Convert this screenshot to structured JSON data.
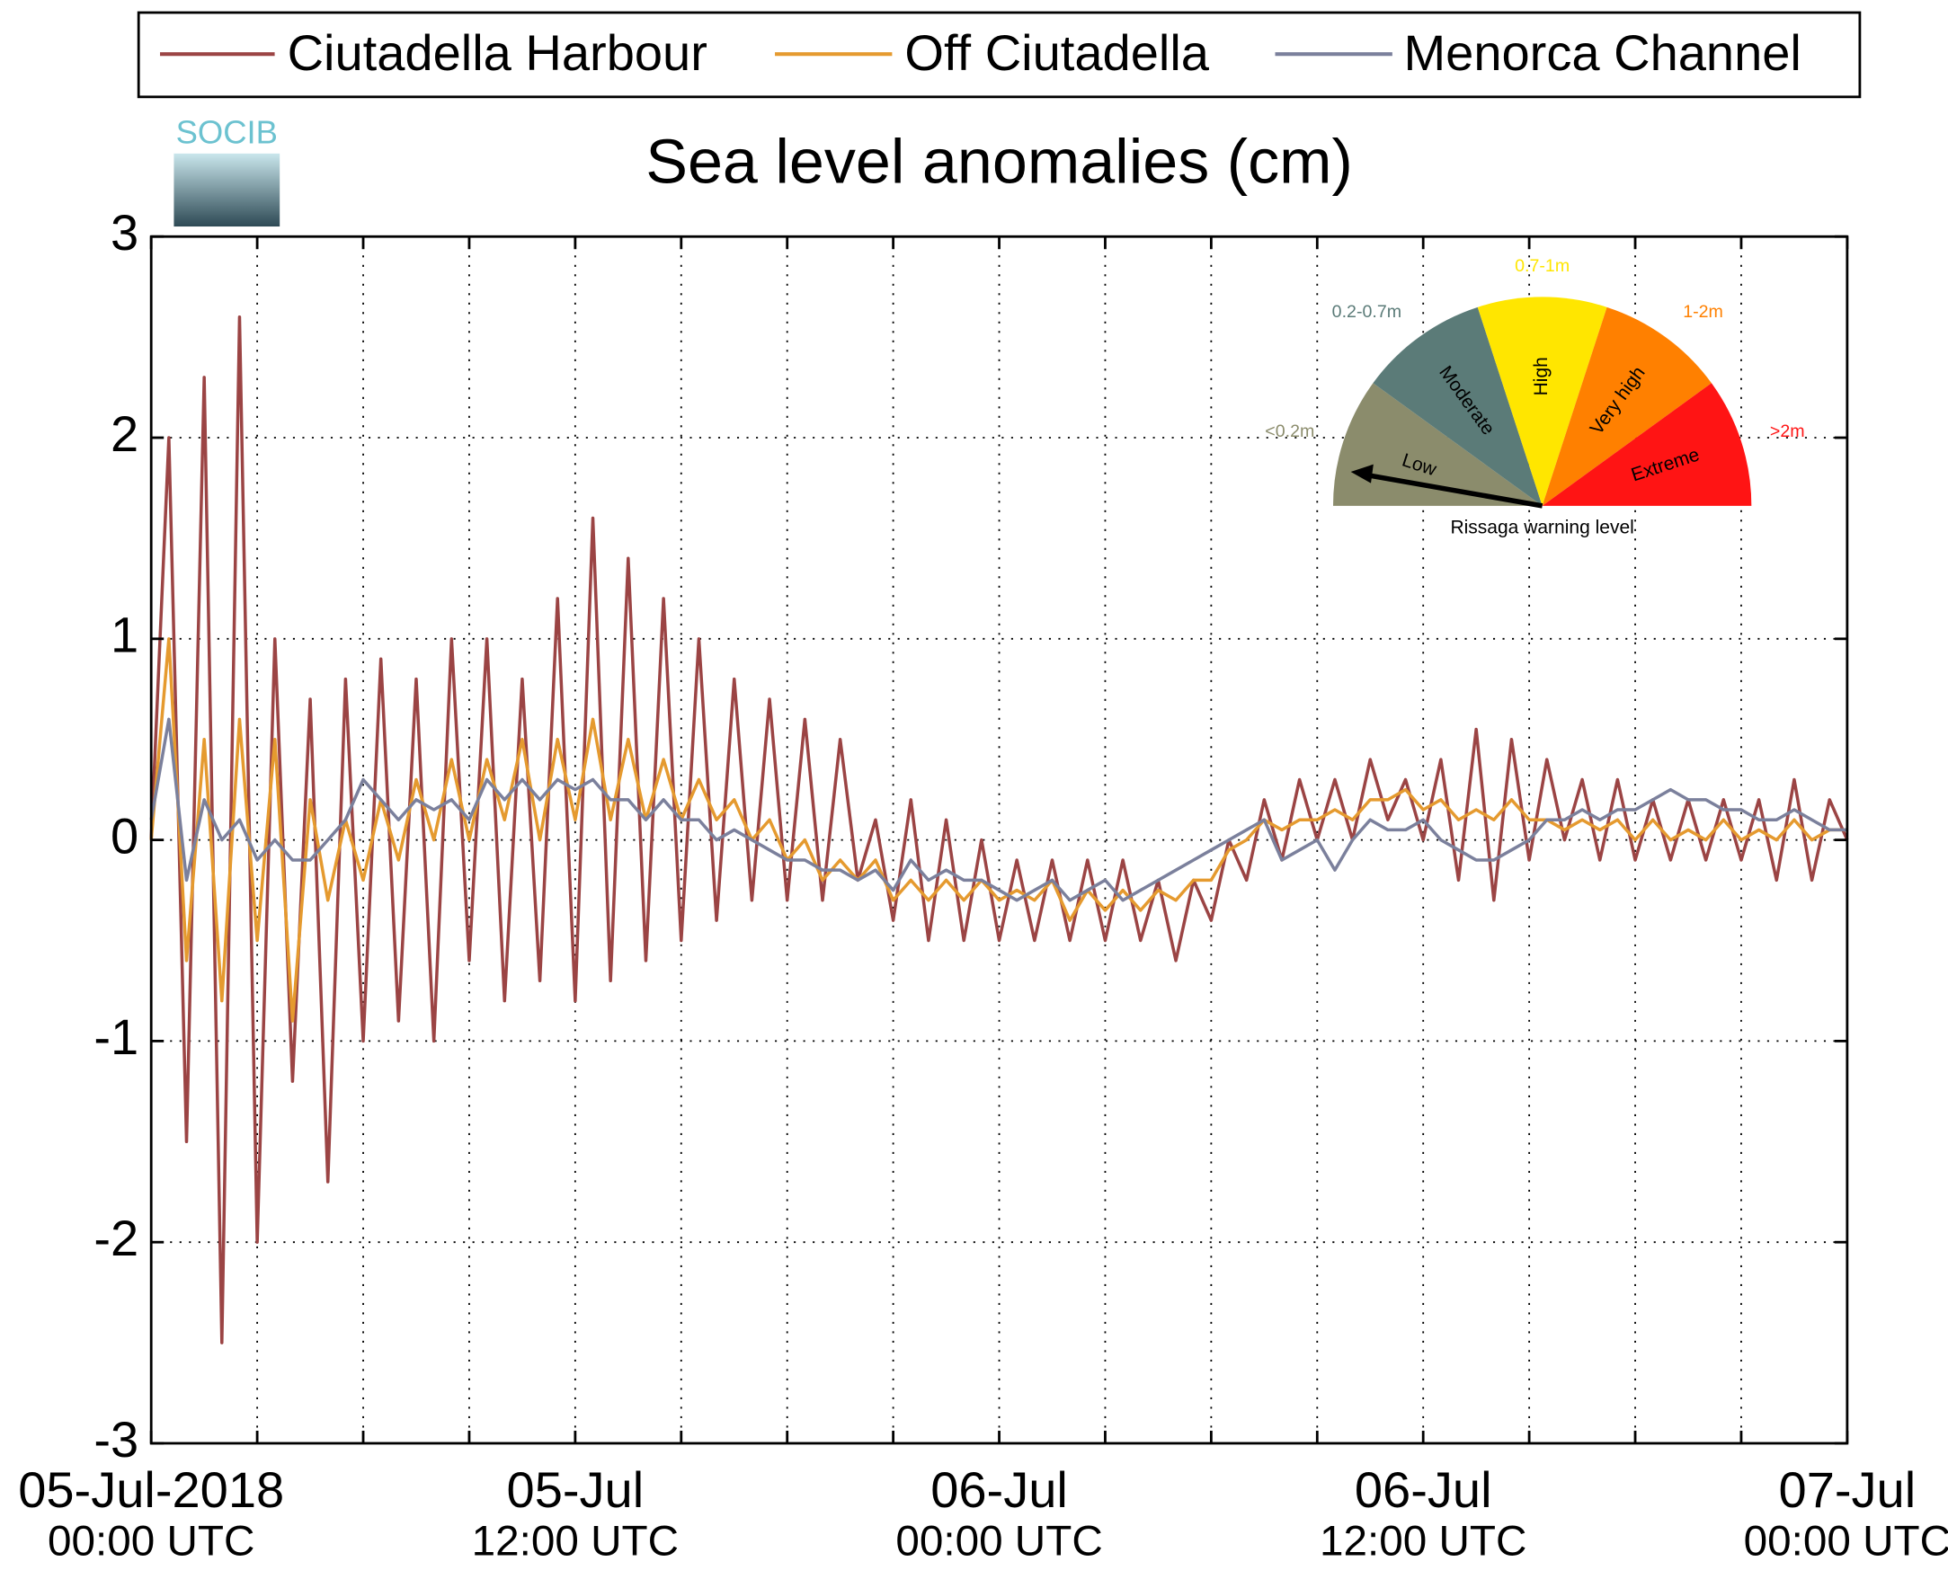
{
  "chart_data": {
    "type": "line",
    "title": "Sea level anomalies (cm)",
    "logo": "SOCIB",
    "x": [
      "2018-07-05 00:00",
      "2018-07-05 00:30",
      "2018-07-05 01:00",
      "2018-07-05 01:30",
      "2018-07-05 02:00",
      "2018-07-05 02:30",
      "2018-07-05 03:00",
      "2018-07-05 03:30",
      "2018-07-05 04:00",
      "2018-07-05 04:30",
      "2018-07-05 05:00",
      "2018-07-05 05:30",
      "2018-07-05 06:00",
      "2018-07-05 06:30",
      "2018-07-05 07:00",
      "2018-07-05 07:30",
      "2018-07-05 08:00",
      "2018-07-05 08:30",
      "2018-07-05 09:00",
      "2018-07-05 09:30",
      "2018-07-05 10:00",
      "2018-07-05 10:30",
      "2018-07-05 11:00",
      "2018-07-05 11:30",
      "2018-07-05 12:00",
      "2018-07-05 12:30",
      "2018-07-05 13:00",
      "2018-07-05 13:30",
      "2018-07-05 14:00",
      "2018-07-05 14:30",
      "2018-07-05 15:00",
      "2018-07-05 15:30",
      "2018-07-05 16:00",
      "2018-07-05 16:30",
      "2018-07-05 17:00",
      "2018-07-05 17:30",
      "2018-07-05 18:00",
      "2018-07-05 18:30",
      "2018-07-05 19:00",
      "2018-07-05 19:30",
      "2018-07-05 20:00",
      "2018-07-05 20:30",
      "2018-07-05 21:00",
      "2018-07-05 21:30",
      "2018-07-05 22:00",
      "2018-07-05 22:30",
      "2018-07-05 23:00",
      "2018-07-05 23:30",
      "2018-07-06 00:00",
      "2018-07-06 00:30",
      "2018-07-06 01:00",
      "2018-07-06 01:30",
      "2018-07-06 02:00",
      "2018-07-06 02:30",
      "2018-07-06 03:00",
      "2018-07-06 03:30",
      "2018-07-06 04:00",
      "2018-07-06 04:30",
      "2018-07-06 05:00",
      "2018-07-06 05:30",
      "2018-07-06 06:00",
      "2018-07-06 06:30",
      "2018-07-06 07:00",
      "2018-07-06 07:30",
      "2018-07-06 08:00",
      "2018-07-06 08:30",
      "2018-07-06 09:00",
      "2018-07-06 09:30",
      "2018-07-06 10:00",
      "2018-07-06 10:30",
      "2018-07-06 11:00",
      "2018-07-06 11:30",
      "2018-07-06 12:00",
      "2018-07-06 12:30",
      "2018-07-06 13:00",
      "2018-07-06 13:30",
      "2018-07-06 14:00",
      "2018-07-06 14:30",
      "2018-07-06 15:00",
      "2018-07-06 15:30",
      "2018-07-06 16:00",
      "2018-07-06 16:30",
      "2018-07-06 17:00",
      "2018-07-06 17:30",
      "2018-07-06 18:00",
      "2018-07-06 18:30",
      "2018-07-06 19:00",
      "2018-07-06 19:30",
      "2018-07-06 20:00",
      "2018-07-06 20:30",
      "2018-07-06 21:00",
      "2018-07-06 21:30",
      "2018-07-06 22:00",
      "2018-07-06 22:30",
      "2018-07-06 23:00",
      "2018-07-06 23:30",
      "2018-07-07 00:00"
    ],
    "series": [
      {
        "name": "Ciutadella Harbour",
        "color": "#9b4444",
        "values": [
          0,
          2.0,
          -1.5,
          2.3,
          -2.5,
          2.6,
          -2.0,
          1.0,
          -1.2,
          0.7,
          -1.7,
          0.8,
          -1.0,
          0.9,
          -0.9,
          0.8,
          -1.0,
          1.0,
          -0.6,
          1.0,
          -0.8,
          0.8,
          -0.7,
          1.2,
          -0.8,
          1.6,
          -0.7,
          1.4,
          -0.6,
          1.2,
          -0.5,
          1.0,
          -0.4,
          0.8,
          -0.3,
          0.7,
          -0.3,
          0.6,
          -0.3,
          0.5,
          -0.2,
          0.1,
          -0.4,
          0.2,
          -0.5,
          0.1,
          -0.5,
          0.0,
          -0.5,
          -0.1,
          -0.5,
          -0.1,
          -0.5,
          -0.1,
          -0.5,
          -0.1,
          -0.5,
          -0.2,
          -0.6,
          -0.2,
          -0.4,
          0.0,
          -0.2,
          0.2,
          -0.1,
          0.3,
          0.0,
          0.3,
          0.0,
          0.4,
          0.1,
          0.3,
          0.0,
          0.4,
          -0.2,
          0.55,
          -0.3,
          0.5,
          -0.1,
          0.4,
          0.0,
          0.3,
          -0.1,
          0.3,
          -0.1,
          0.2,
          -0.1,
          0.2,
          -0.1,
          0.2,
          -0.1,
          0.2,
          -0.2,
          0.3,
          -0.2,
          0.2,
          0.0
        ]
      },
      {
        "name": "Off Ciutadella",
        "color": "#e59a2f",
        "values": [
          0,
          1.0,
          -0.6,
          0.5,
          -0.8,
          0.6,
          -0.5,
          0.5,
          -0.9,
          0.2,
          -0.3,
          0.1,
          -0.2,
          0.2,
          -0.1,
          0.3,
          0.0,
          0.4,
          0.0,
          0.4,
          0.1,
          0.5,
          0.0,
          0.5,
          0.1,
          0.6,
          0.1,
          0.5,
          0.1,
          0.4,
          0.1,
          0.3,
          0.1,
          0.2,
          0.0,
          0.1,
          -0.1,
          0.0,
          -0.2,
          -0.1,
          -0.2,
          -0.1,
          -0.3,
          -0.2,
          -0.3,
          -0.2,
          -0.3,
          -0.2,
          -0.3,
          -0.25,
          -0.3,
          -0.2,
          -0.4,
          -0.25,
          -0.35,
          -0.25,
          -0.35,
          -0.25,
          -0.3,
          -0.2,
          -0.2,
          -0.05,
          0.0,
          0.1,
          0.05,
          0.1,
          0.1,
          0.15,
          0.1,
          0.2,
          0.2,
          0.25,
          0.15,
          0.2,
          0.1,
          0.15,
          0.1,
          0.2,
          0.1,
          0.1,
          0.05,
          0.1,
          0.05,
          0.1,
          0.0,
          0.1,
          0.0,
          0.05,
          0.0,
          0.1,
          0.0,
          0.05,
          0.0,
          0.1,
          0.0,
          0.05,
          0.05
        ]
      },
      {
        "name": "Menorca Channel",
        "color": "#7b809c",
        "values": [
          0.1,
          0.6,
          -0.2,
          0.2,
          0.0,
          0.1,
          -0.1,
          0.0,
          -0.1,
          -0.1,
          0.0,
          0.1,
          0.3,
          0.2,
          0.1,
          0.2,
          0.15,
          0.2,
          0.1,
          0.3,
          0.2,
          0.3,
          0.2,
          0.3,
          0.25,
          0.3,
          0.2,
          0.2,
          0.1,
          0.2,
          0.1,
          0.1,
          0.0,
          0.05,
          0.0,
          -0.05,
          -0.1,
          -0.1,
          -0.15,
          -0.15,
          -0.2,
          -0.15,
          -0.25,
          -0.1,
          -0.2,
          -0.15,
          -0.2,
          -0.2,
          -0.25,
          -0.3,
          -0.25,
          -0.2,
          -0.3,
          -0.25,
          -0.2,
          -0.3,
          -0.25,
          -0.2,
          -0.15,
          -0.1,
          -0.05,
          0.0,
          0.05,
          0.1,
          -0.1,
          -0.05,
          0.0,
          -0.15,
          0.0,
          0.1,
          0.05,
          0.05,
          0.1,
          0.0,
          -0.05,
          -0.1,
          -0.1,
          -0.05,
          0.0,
          0.1,
          0.1,
          0.15,
          0.1,
          0.15,
          0.15,
          0.2,
          0.25,
          0.2,
          0.2,
          0.15,
          0.15,
          0.1,
          0.1,
          0.15,
          0.1,
          0.05,
          0.05
        ]
      }
    ],
    "xlim": [
      "2018-07-05 00:00",
      "2018-07-07 00:00"
    ],
    "xticks": [
      {
        "value": "2018-07-05 00:00",
        "label": "05-Jul-2018",
        "sublabel": "00:00 UTC"
      },
      {
        "value": "2018-07-05 12:00",
        "label": "05-Jul",
        "sublabel": "12:00 UTC"
      },
      {
        "value": "2018-07-06 00:00",
        "label": "06-Jul",
        "sublabel": "00:00 UTC"
      },
      {
        "value": "2018-07-06 12:00",
        "label": "06-Jul",
        "sublabel": "12:00 UTC"
      },
      {
        "value": "2018-07-07 00:00",
        "label": "07-Jul",
        "sublabel": "00:00 UTC"
      }
    ],
    "xminorticks": [
      "2018-07-05 03:00",
      "2018-07-05 06:00",
      "2018-07-05 09:00",
      "2018-07-05 15:00",
      "2018-07-05 18:00",
      "2018-07-05 21:00",
      "2018-07-06 03:00",
      "2018-07-06 06:00",
      "2018-07-06 09:00",
      "2018-07-06 15:00",
      "2018-07-06 18:00",
      "2018-07-06 21:00"
    ],
    "ylim": [
      -3,
      3
    ],
    "yticks": [
      -3,
      -2,
      -1,
      0,
      1,
      2,
      3
    ],
    "grid": true,
    "legend": "top",
    "gauge": {
      "title": "Rissaga warning level",
      "levels": [
        {
          "name": "Low",
          "range": "<0.2m",
          "color": "#8b8c6c"
        },
        {
          "name": "Moderate",
          "range": "0.2-0.7m",
          "color": "#5b7b78"
        },
        {
          "name": "High",
          "range": "0.7-1m",
          "color": "#ffe600"
        },
        {
          "name": "Very high",
          "range": "1-2m",
          "color": "#ff8000"
        },
        {
          "name": "Extreme",
          "range": ">2m",
          "color": "#ff1414"
        }
      ]
    }
  }
}
